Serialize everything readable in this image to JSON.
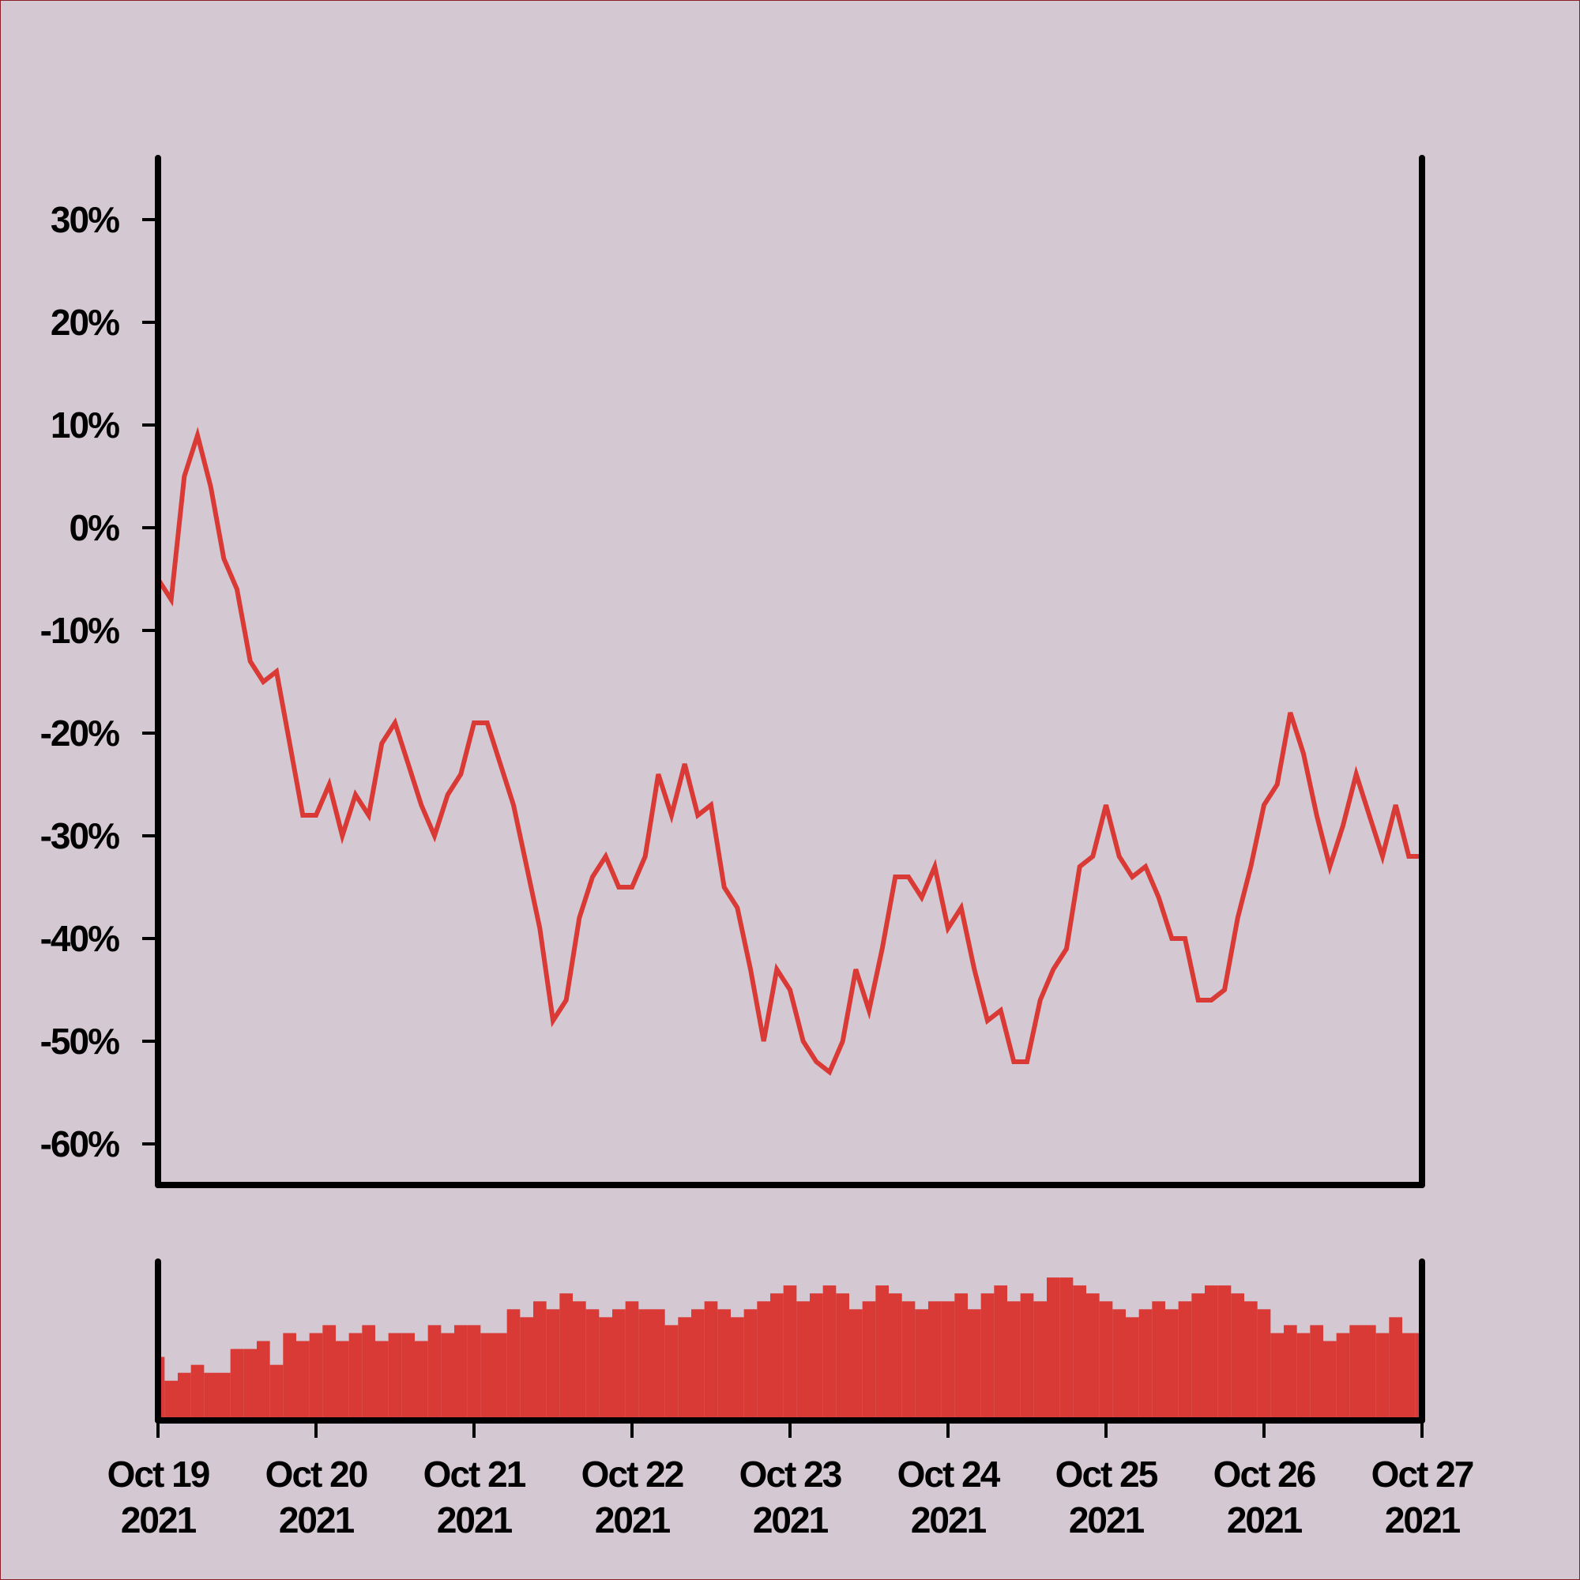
{
  "chart_data": [
    {
      "type": "line",
      "color": "#d93a35",
      "x": [
        "2021-10-19 00:00",
        "2021-10-19 02:00",
        "2021-10-19 04:00",
        "2021-10-19 06:00",
        "2021-10-19 08:00",
        "2021-10-19 10:00",
        "2021-10-19 12:00",
        "2021-10-19 14:00",
        "2021-10-19 16:00",
        "2021-10-19 18:00",
        "2021-10-19 20:00",
        "2021-10-19 22:00",
        "2021-10-20 00:00",
        "2021-10-20 02:00",
        "2021-10-20 04:00",
        "2021-10-20 06:00",
        "2021-10-20 08:00",
        "2021-10-20 10:00",
        "2021-10-20 12:00",
        "2021-10-20 14:00",
        "2021-10-20 16:00",
        "2021-10-20 18:00",
        "2021-10-20 20:00",
        "2021-10-20 22:00",
        "2021-10-21 00:00",
        "2021-10-21 02:00",
        "2021-10-21 04:00",
        "2021-10-21 06:00",
        "2021-10-21 08:00",
        "2021-10-21 10:00",
        "2021-10-21 12:00",
        "2021-10-21 14:00",
        "2021-10-21 16:00",
        "2021-10-21 18:00",
        "2021-10-21 20:00",
        "2021-10-21 22:00",
        "2021-10-22 00:00",
        "2021-10-22 02:00",
        "2021-10-22 04:00",
        "2021-10-22 06:00",
        "2021-10-22 08:00",
        "2021-10-22 10:00",
        "2021-10-22 12:00",
        "2021-10-22 14:00",
        "2021-10-22 16:00",
        "2021-10-22 18:00",
        "2021-10-22 20:00",
        "2021-10-22 22:00",
        "2021-10-23 00:00",
        "2021-10-23 02:00",
        "2021-10-23 04:00",
        "2021-10-23 06:00",
        "2021-10-23 08:00",
        "2021-10-23 10:00",
        "2021-10-23 12:00",
        "2021-10-23 14:00",
        "2021-10-23 16:00",
        "2021-10-23 18:00",
        "2021-10-23 20:00",
        "2021-10-23 22:00",
        "2021-10-24 00:00",
        "2021-10-24 02:00",
        "2021-10-24 04:00",
        "2021-10-24 06:00",
        "2021-10-24 08:00",
        "2021-10-24 10:00",
        "2021-10-24 12:00",
        "2021-10-24 14:00",
        "2021-10-24 16:00",
        "2021-10-24 18:00",
        "2021-10-24 20:00",
        "2021-10-24 22:00",
        "2021-10-25 00:00",
        "2021-10-25 02:00",
        "2021-10-25 04:00",
        "2021-10-25 06:00",
        "2021-10-25 08:00",
        "2021-10-25 10:00",
        "2021-10-25 12:00",
        "2021-10-25 14:00",
        "2021-10-25 16:00",
        "2021-10-25 18:00",
        "2021-10-25 20:00",
        "2021-10-25 22:00",
        "2021-10-26 00:00",
        "2021-10-26 02:00",
        "2021-10-26 04:00",
        "2021-10-26 06:00",
        "2021-10-26 08:00",
        "2021-10-26 10:00",
        "2021-10-26 12:00",
        "2021-10-26 14:00",
        "2021-10-26 16:00",
        "2021-10-26 18:00",
        "2021-10-26 20:00",
        "2021-10-26 22:00",
        "2021-10-27 00:00"
      ],
      "values": [
        -5,
        -7,
        5,
        9,
        4,
        -3,
        -6,
        -13,
        -15,
        -14,
        -21,
        -28,
        -28,
        -25,
        -30,
        -26,
        -28,
        -21,
        -19,
        -23,
        -27,
        -30,
        -26,
        -24,
        -19,
        -19,
        -23,
        -27,
        -33,
        -39,
        -48,
        -46,
        -38,
        -34,
        -32,
        -35,
        -35,
        -32,
        -24,
        -28,
        -23,
        -28,
        -27,
        -35,
        -37,
        -43,
        -50,
        -43,
        -45,
        -50,
        -52,
        -53,
        -50,
        -43,
        -47,
        -41,
        -34,
        -34,
        -36,
        -33,
        -39,
        -37,
        -43,
        -48,
        -47,
        -52,
        -52,
        -46,
        -43,
        -41,
        -33,
        -32,
        -27,
        -32,
        -34,
        -33,
        -36,
        -40,
        -40,
        -46,
        -46,
        -45,
        -38,
        -33,
        -27,
        -25,
        -18,
        -22,
        -28,
        -33,
        -29,
        -24,
        -28,
        -32,
        -27,
        -32,
        -32
      ],
      "xlim": [
        "2021-10-19 00:00",
        "2021-10-27 00:00"
      ],
      "ylim": [
        -64,
        36
      ],
      "yticks": [
        {
          "value": 30,
          "label": "30%"
        },
        {
          "value": 20,
          "label": "20%"
        },
        {
          "value": 10,
          "label": "10%"
        },
        {
          "value": 0,
          "label": "0%"
        },
        {
          "value": -10,
          "label": "-10%"
        },
        {
          "value": -20,
          "label": "-20%"
        },
        {
          "value": -30,
          "label": "-30%"
        },
        {
          "value": -40,
          "label": "-40%"
        },
        {
          "value": -50,
          "label": "-50%"
        },
        {
          "value": -60,
          "label": "-60%"
        }
      ]
    },
    {
      "type": "bar",
      "color": "#d93a35",
      "x": [
        "2021-10-19 00:00",
        "2021-10-19 02:00",
        "2021-10-19 04:00",
        "2021-10-19 06:00",
        "2021-10-19 08:00",
        "2021-10-19 10:00",
        "2021-10-19 12:00",
        "2021-10-19 14:00",
        "2021-10-19 16:00",
        "2021-10-19 18:00",
        "2021-10-19 20:00",
        "2021-10-19 22:00",
        "2021-10-20 00:00",
        "2021-10-20 02:00",
        "2021-10-20 04:00",
        "2021-10-20 06:00",
        "2021-10-20 08:00",
        "2021-10-20 10:00",
        "2021-10-20 12:00",
        "2021-10-20 14:00",
        "2021-10-20 16:00",
        "2021-10-20 18:00",
        "2021-10-20 20:00",
        "2021-10-20 22:00",
        "2021-10-21 00:00",
        "2021-10-21 02:00",
        "2021-10-21 04:00",
        "2021-10-21 06:00",
        "2021-10-21 08:00",
        "2021-10-21 10:00",
        "2021-10-21 12:00",
        "2021-10-21 14:00",
        "2021-10-21 16:00",
        "2021-10-21 18:00",
        "2021-10-21 20:00",
        "2021-10-21 22:00",
        "2021-10-22 00:00",
        "2021-10-22 02:00",
        "2021-10-22 04:00",
        "2021-10-22 06:00",
        "2021-10-22 08:00",
        "2021-10-22 10:00",
        "2021-10-22 12:00",
        "2021-10-22 14:00",
        "2021-10-22 16:00",
        "2021-10-22 18:00",
        "2021-10-22 20:00",
        "2021-10-22 22:00",
        "2021-10-23 00:00",
        "2021-10-23 02:00",
        "2021-10-23 04:00",
        "2021-10-23 06:00",
        "2021-10-23 08:00",
        "2021-10-23 10:00",
        "2021-10-23 12:00",
        "2021-10-23 14:00",
        "2021-10-23 16:00",
        "2021-10-23 18:00",
        "2021-10-23 20:00",
        "2021-10-23 22:00",
        "2021-10-24 00:00",
        "2021-10-24 02:00",
        "2021-10-24 04:00",
        "2021-10-24 06:00",
        "2021-10-24 08:00",
        "2021-10-24 10:00",
        "2021-10-24 12:00",
        "2021-10-24 14:00",
        "2021-10-24 16:00",
        "2021-10-24 18:00",
        "2021-10-24 20:00",
        "2021-10-24 22:00",
        "2021-10-25 00:00",
        "2021-10-25 02:00",
        "2021-10-25 04:00",
        "2021-10-25 06:00",
        "2021-10-25 08:00",
        "2021-10-25 10:00",
        "2021-10-25 12:00",
        "2021-10-25 14:00",
        "2021-10-25 16:00",
        "2021-10-25 18:00",
        "2021-10-25 20:00",
        "2021-10-25 22:00",
        "2021-10-26 00:00",
        "2021-10-26 02:00",
        "2021-10-26 04:00",
        "2021-10-26 06:00",
        "2021-10-26 08:00",
        "2021-10-26 10:00",
        "2021-10-26 12:00",
        "2021-10-26 14:00",
        "2021-10-26 16:00",
        "2021-10-26 18:00",
        "2021-10-26 20:00",
        "2021-10-26 22:00",
        "2021-10-27 00:00"
      ],
      "values": [
        40,
        25,
        30,
        35,
        30,
        30,
        45,
        45,
        50,
        35,
        55,
        50,
        55,
        60,
        50,
        55,
        60,
        50,
        55,
        55,
        50,
        60,
        55,
        60,
        60,
        55,
        55,
        70,
        65,
        75,
        70,
        80,
        75,
        70,
        65,
        70,
        75,
        70,
        70,
        60,
        65,
        70,
        75,
        70,
        65,
        70,
        75,
        80,
        85,
        75,
        80,
        85,
        80,
        70,
        75,
        85,
        80,
        75,
        70,
        75,
        75,
        80,
        70,
        80,
        85,
        75,
        80,
        75,
        90,
        90,
        85,
        80,
        75,
        70,
        65,
        70,
        75,
        70,
        75,
        80,
        85,
        85,
        80,
        75,
        70,
        55,
        60,
        55,
        60,
        50,
        55,
        60,
        60,
        55,
        65,
        55,
        55
      ],
      "xlim": [
        "2021-10-19 00:00",
        "2021-10-27 00:00"
      ],
      "ylim": [
        0,
        100
      ],
      "xticks": [
        {
          "value": "2021-10-19 00:00",
          "label": "Oct 19\n2021"
        },
        {
          "value": "2021-10-20 00:00",
          "label": "Oct 20\n2021"
        },
        {
          "value": "2021-10-21 00:00",
          "label": "Oct 21\n2021"
        },
        {
          "value": "2021-10-22 00:00",
          "label": "Oct 22\n2021"
        },
        {
          "value": "2021-10-23 00:00",
          "label": "Oct 23\n2021"
        },
        {
          "value": "2021-10-24 00:00",
          "label": "Oct 24\n2021"
        },
        {
          "value": "2021-10-25 00:00",
          "label": "Oct 25\n2021"
        },
        {
          "value": "2021-10-26 00:00",
          "label": "Oct 26\n2021"
        },
        {
          "value": "2021-10-27 00:00",
          "label": "Oct 27\n2021"
        }
      ]
    }
  ]
}
